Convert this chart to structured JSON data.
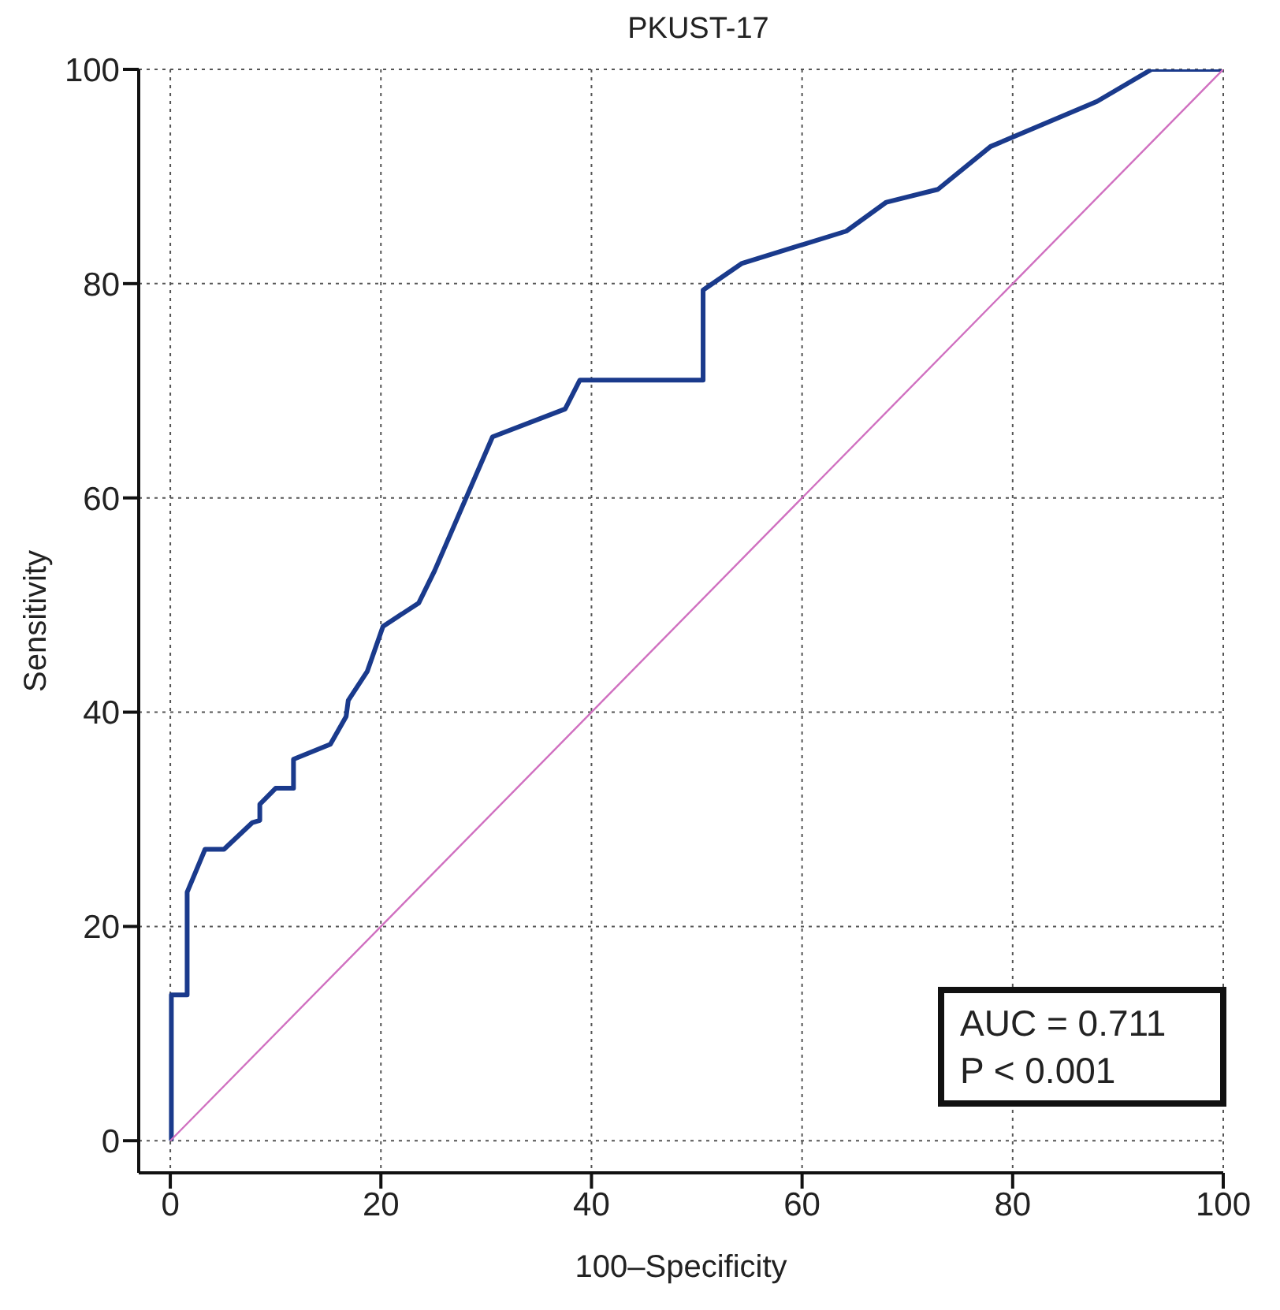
{
  "chart_data": {
    "type": "line",
    "title": "PKUST-17",
    "xlabel": "100–Specificity",
    "ylabel": "Sensitivity",
    "xlim": [
      -3,
      100
    ],
    "ylim": [
      -3,
      100
    ],
    "xticks": [
      0,
      20,
      40,
      60,
      80,
      100
    ],
    "yticks": [
      0,
      20,
      40,
      60,
      80,
      100
    ],
    "grid": true,
    "marker": "none",
    "annotations": [
      "AUC = 0.711",
      "P < 0.001"
    ],
    "series": [
      {
        "color": "#1a3a8c",
        "x": [
          0.1,
          0.1,
          1.6,
          1.6,
          3.3,
          5.1,
          7.8,
          8.5,
          8.5,
          10.0,
          11.7,
          11.7,
          15.2,
          16.7,
          16.9,
          18.7,
          20.2,
          23.6,
          25.1,
          30.6,
          37.5,
          38.9,
          50.6,
          50.6,
          54.3,
          64.2,
          68.0,
          72.9,
          77.9,
          88.0,
          93.2,
          100
        ],
        "values": [
          0,
          13.6,
          13.6,
          23.2,
          27.2,
          27.2,
          29.7,
          29.9,
          31.4,
          32.9,
          32.9,
          35.6,
          37.0,
          39.6,
          41.1,
          43.8,
          48.0,
          50.2,
          53.2,
          65.7,
          68.3,
          71.0,
          71.0,
          79.4,
          81.9,
          84.9,
          87.6,
          88.8,
          92.8,
          97.0,
          100,
          100
        ]
      },
      {
        "color": "#d070c0",
        "x": [
          0,
          100
        ],
        "values": [
          0,
          100
        ]
      }
    ]
  }
}
